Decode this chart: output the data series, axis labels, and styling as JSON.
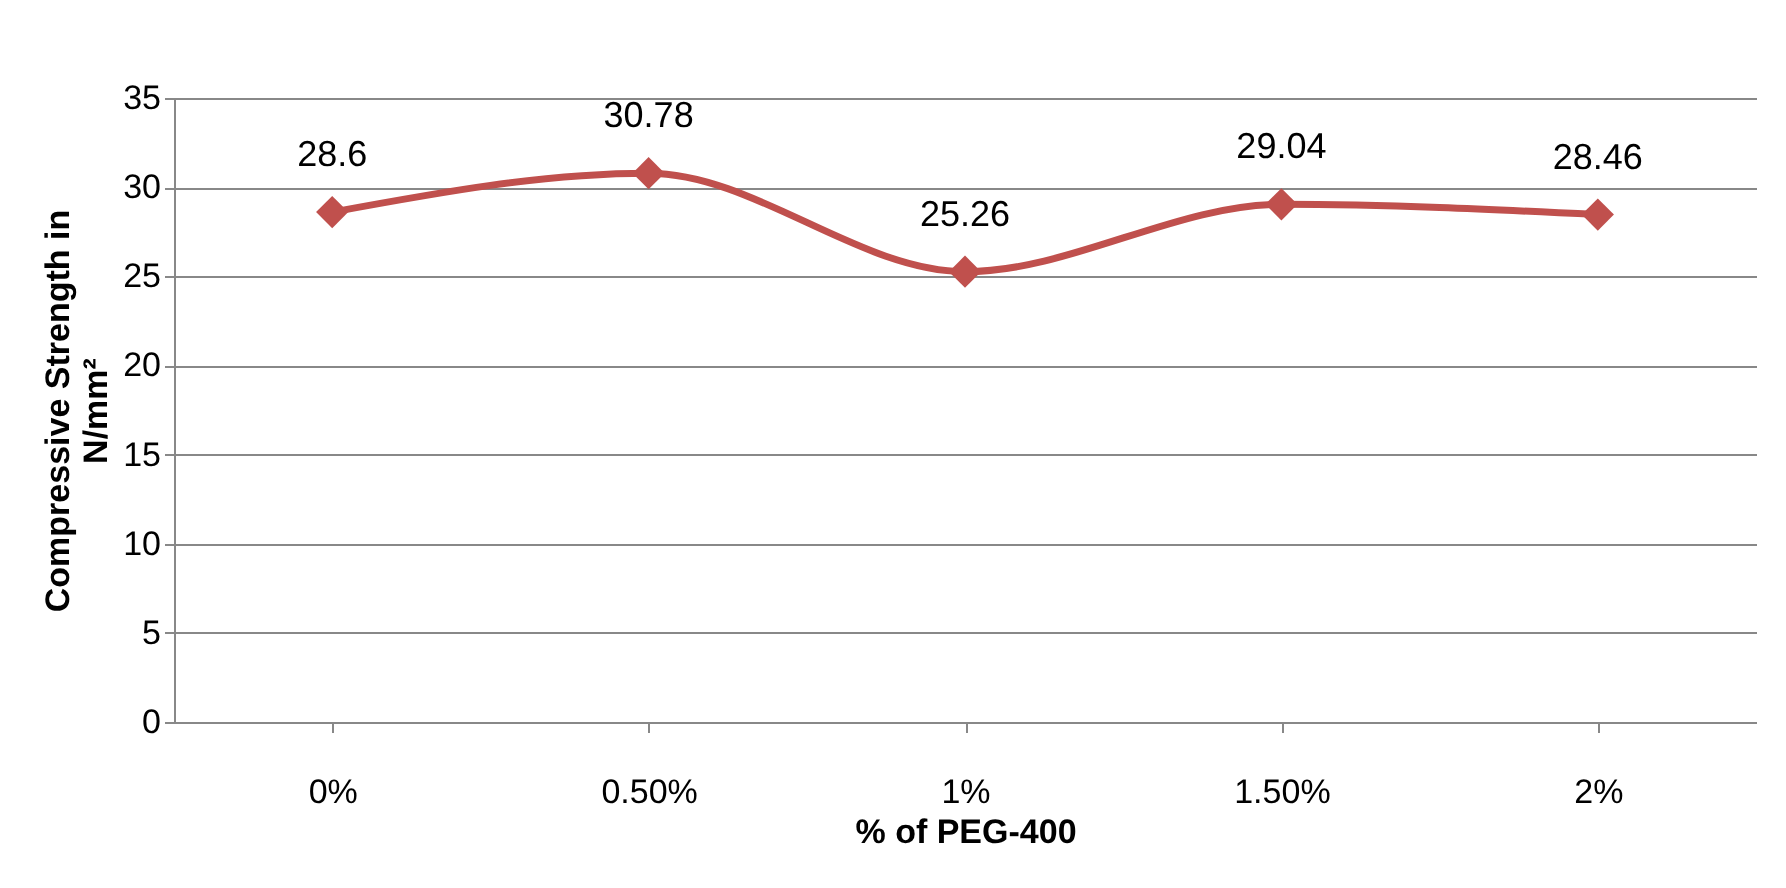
{
  "chart_data": {
    "type": "line",
    "categories": [
      "0%",
      "0.50%",
      "1%",
      "1.50%",
      "2%"
    ],
    "series": [
      {
        "color": "#c0504d",
        "values": [
          28.6,
          30.78,
          25.26,
          29.04,
          28.46
        ]
      }
    ],
    "xlabel": "% of PEG-400",
    "ylabel": "Compressive Strength  in\nN/mm²",
    "ylim": [
      0,
      35
    ],
    "yticks": [
      0,
      5,
      10,
      15,
      20,
      25,
      30,
      35
    ],
    "grid": "y",
    "marker": "diamond",
    "line_style": "solid",
    "data_labels": true,
    "legend": false
  }
}
